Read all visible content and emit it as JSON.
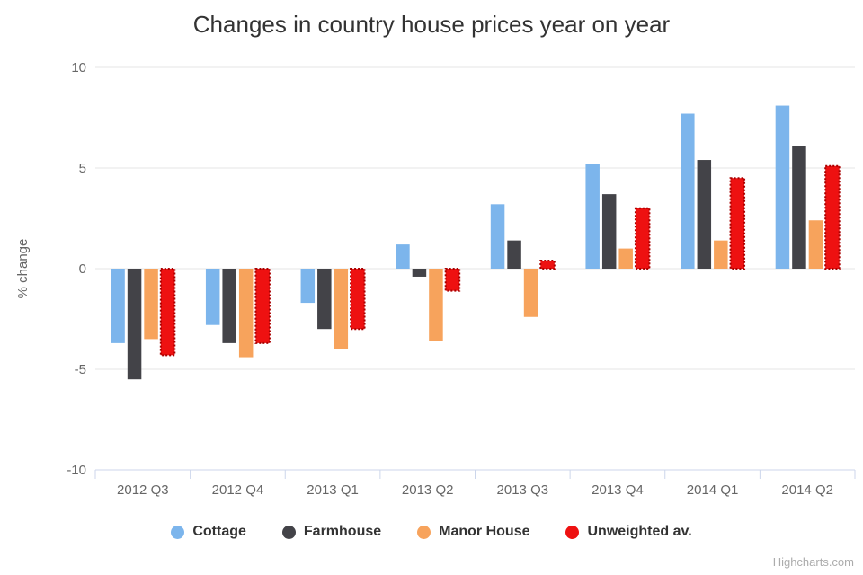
{
  "header": {
    "title": "Changes in country house prices year on year"
  },
  "chart_data": {
    "type": "bar",
    "title": "Changes in country house prices year on year",
    "xlabel": "",
    "ylabel": "% change",
    "ylim": [
      -10,
      10
    ],
    "yticks": [
      10,
      5,
      0,
      -5,
      -10
    ],
    "grid": true,
    "legend_position": "bottom",
    "categories": [
      "2012 Q3",
      "2012 Q4",
      "2013 Q1",
      "2013 Q2",
      "2013 Q3",
      "2013 Q4",
      "2014 Q1",
      "2014 Q2"
    ],
    "series": [
      {
        "name": "Cottage",
        "color": "#7cb5ec",
        "values": [
          -3.7,
          -2.8,
          -1.7,
          1.2,
          3.2,
          5.2,
          7.7,
          8.1
        ]
      },
      {
        "name": "Farmhouse",
        "color": "#434348",
        "values": [
          -5.5,
          -3.7,
          -3.0,
          -0.4,
          1.4,
          3.7,
          5.4,
          6.1
        ]
      },
      {
        "name": "Manor House",
        "color": "#f7a35c",
        "values": [
          -3.5,
          -4.4,
          -4.0,
          -3.6,
          -2.4,
          1.0,
          1.4,
          2.4
        ]
      },
      {
        "name": "Unweighted av.",
        "color": "#ee1111",
        "border_color": "#aa0000",
        "border_style": "dotted",
        "values": [
          -4.3,
          -3.7,
          -3.0,
          -1.1,
          0.4,
          3.0,
          4.5,
          5.1
        ]
      }
    ],
    "colors": {
      "title_text": "#333333",
      "axis_text": "#666666",
      "gridline": "#e6e6e6",
      "axis_line": "#ccd6eb",
      "legend_text": "#333333",
      "credits_text": "#acacac"
    }
  },
  "credits": {
    "label": "Highcharts.com"
  }
}
